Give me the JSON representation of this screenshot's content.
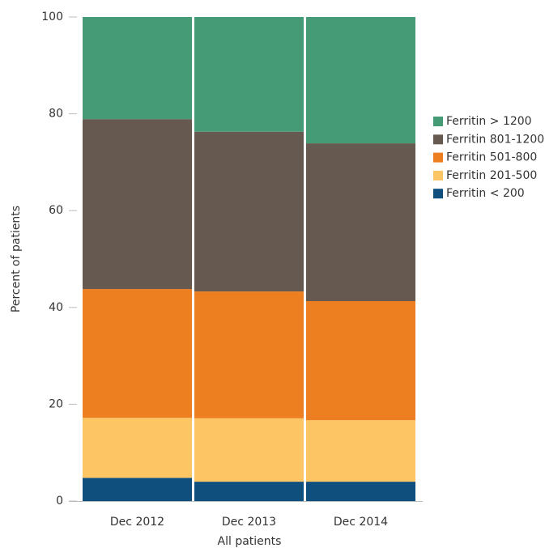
{
  "chart_data": {
    "type": "stacked_bar",
    "categories": [
      "Dec 2012",
      "Dec 2013",
      "Dec 2014"
    ],
    "series": [
      {
        "name": "Ferritin < 200",
        "color": "#0e4f7e",
        "values": [
          4.8,
          4.0,
          4.0
        ]
      },
      {
        "name": "Ferritin 201-500",
        "color": "#fec564",
        "values": [
          12.4,
          13.1,
          12.7
        ]
      },
      {
        "name": "Ferritin 501-800",
        "color": "#ee7f20",
        "values": [
          26.6,
          26.2,
          24.6
        ]
      },
      {
        "name": "Ferritin 801-1200",
        "color": "#665a50",
        "values": [
          35.1,
          33.0,
          32.6
        ]
      },
      {
        "name": "Ferritin > 1200",
        "color": "#469b77",
        "values": [
          21.1,
          23.7,
          26.1
        ]
      }
    ],
    "x_label": "All patients",
    "y_label": "Percent of patients",
    "ylim": [
      0,
      100
    ],
    "yticks": [
      0,
      20,
      40,
      60,
      80,
      100
    ],
    "legend": "right"
  }
}
